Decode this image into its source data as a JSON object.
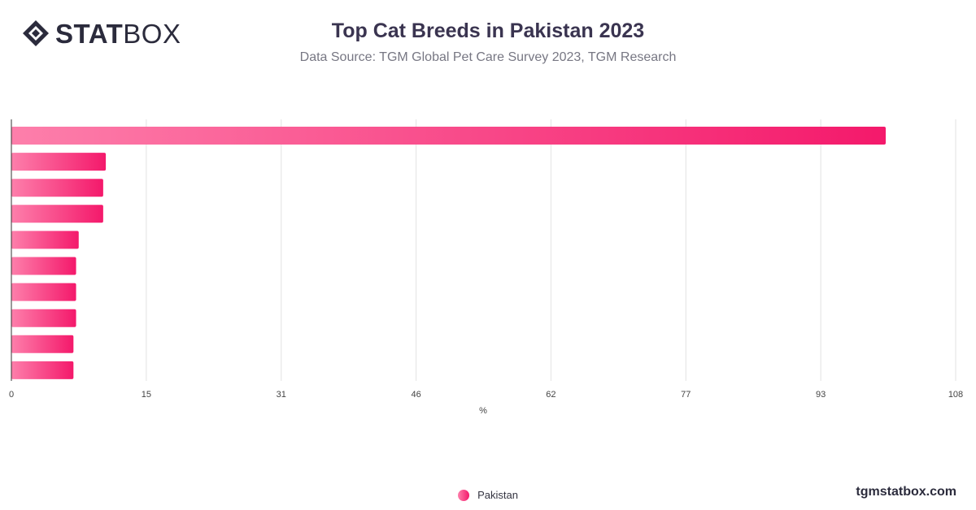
{
  "logo": {
    "bold_text": "STAT",
    "light_text": "BOX",
    "icon": "statbox-diamond-icon"
  },
  "header": {
    "title": "Top Cat Breeds in Pakistan 2023",
    "subtitle": "Data Source: TGM Global Pet Care Survey 2023, TGM Research"
  },
  "footer": {
    "site": "tgmstatbox.com"
  },
  "colors": {
    "bar_start": "#fd7fab",
    "bar_end": "#f4196b",
    "grid": "#e2e2e2",
    "axis": "#333333",
    "tick_label": "#444444"
  },
  "chart_data": {
    "type": "bar",
    "orientation": "horizontal",
    "title": "Top Cat Breeds in Pakistan 2023",
    "subtitle": "Data Source: TGM Global Pet Care Survey 2023, TGM Research",
    "xlabel": "%",
    "ylabel": "",
    "xlim": [
      0,
      108
    ],
    "x_ticks": [
      "0",
      "15",
      "31",
      "46",
      "62",
      "77",
      "93",
      "108"
    ],
    "x_tick_values": [
      0,
      15.43,
      30.86,
      46.29,
      61.71,
      77.14,
      92.57,
      108
    ],
    "grid": true,
    "legend_position": "bottom-center",
    "categories": [
      "",
      "",
      "",
      "",
      "",
      "",
      "",
      "",
      "",
      ""
    ],
    "series": [
      {
        "name": "Pakistan",
        "values": [
          100,
          10.8,
          10.5,
          10.5,
          7.7,
          7.4,
          7.4,
          7.4,
          7.1,
          7.1
        ]
      }
    ]
  }
}
